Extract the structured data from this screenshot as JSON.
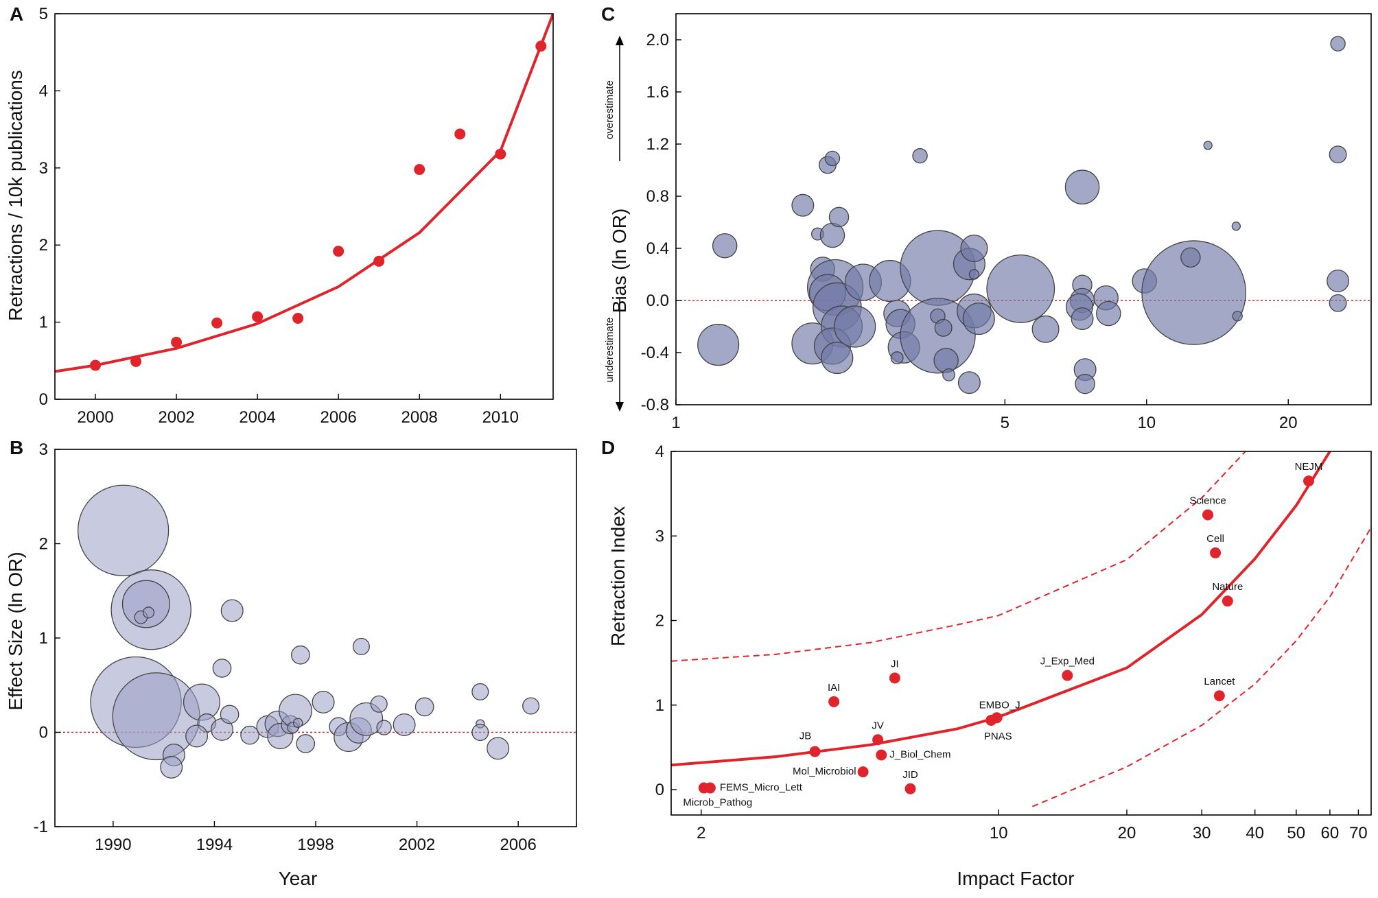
{
  "colors": {
    "red": "#e0242b",
    "bubble": "#7179a8",
    "bubbleB": "#9a9ec4",
    "axis": "#000000"
  },
  "chart_data": [
    {
      "panel": "A",
      "type": "scatter",
      "xlabel": "",
      "ylabel": "Retractions / 10k publications",
      "xlim": [
        1999,
        2011.3
      ],
      "ylim": [
        0,
        5
      ],
      "xticks": [
        2000,
        2002,
        2004,
        2006,
        2008,
        2010
      ],
      "yticks": [
        0,
        1,
        2,
        3,
        4,
        5
      ],
      "points": [
        {
          "x": 2000,
          "y": 0.44
        },
        {
          "x": 2001,
          "y": 0.49
        },
        {
          "x": 2002,
          "y": 0.74
        },
        {
          "x": 2003,
          "y": 0.99
        },
        {
          "x": 2004,
          "y": 1.07
        },
        {
          "x": 2005,
          "y": 1.05
        },
        {
          "x": 2006,
          "y": 1.92
        },
        {
          "x": 2007,
          "y": 1.79
        },
        {
          "x": 2008,
          "y": 2.98
        },
        {
          "x": 2009,
          "y": 3.44
        },
        {
          "x": 2010,
          "y": 3.18
        },
        {
          "x": 2011,
          "y": 4.58
        }
      ],
      "fit": {
        "type": "exponential",
        "curve": [
          [
            1999,
            0.36
          ],
          [
            2000,
            0.44
          ],
          [
            2002,
            0.66
          ],
          [
            2004,
            0.98
          ],
          [
            2006,
            1.46
          ],
          [
            2008,
            2.16
          ],
          [
            2010,
            3.22
          ],
          [
            2011.3,
            5.0
          ]
        ]
      }
    },
    {
      "panel": "B",
      "type": "bubble",
      "xlabel": "Year",
      "ylabel": "Effect Size (ln OR)",
      "xlim": [
        1987.7,
        2008.3
      ],
      "ylim": [
        -1,
        3
      ],
      "xticks": [
        1990,
        1994,
        1998,
        2002,
        2006
      ],
      "yticks": [
        -1,
        0,
        1,
        2,
        3
      ],
      "reference_line": 0,
      "points": [
        {
          "x": 1990.4,
          "y": 2.14,
          "size": 1.0
        },
        {
          "x": 1991.5,
          "y": 1.3,
          "size": 0.88
        },
        {
          "x": 1991.3,
          "y": 1.36,
          "size": 0.52
        },
        {
          "x": 1991.1,
          "y": 1.22,
          "size": 0.14
        },
        {
          "x": 1991.4,
          "y": 1.27,
          "size": 0.12
        },
        {
          "x": 1990.9,
          "y": 0.32,
          "size": 1.0
        },
        {
          "x": 1991.7,
          "y": 0.17,
          "size": 0.96
        },
        {
          "x": 1992.4,
          "y": -0.24,
          "size": 0.24
        },
        {
          "x": 1992.3,
          "y": -0.37,
          "size": 0.24
        },
        {
          "x": 1993.5,
          "y": 0.32,
          "size": 0.4
        },
        {
          "x": 1993.7,
          "y": 0.1,
          "size": 0.2
        },
        {
          "x": 1993.3,
          "y": -0.04,
          "size": 0.24
        },
        {
          "x": 1994.3,
          "y": 0.03,
          "size": 0.24
        },
        {
          "x": 1994.6,
          "y": 0.19,
          "size": 0.2
        },
        {
          "x": 1994.3,
          "y": 0.68,
          "size": 0.2
        },
        {
          "x": 1994.7,
          "y": 1.29,
          "size": 0.24
        },
        {
          "x": 1995.4,
          "y": -0.03,
          "size": 0.2
        },
        {
          "x": 1996.1,
          "y": 0.06,
          "size": 0.24
        },
        {
          "x": 1996.5,
          "y": 0.09,
          "size": 0.28
        },
        {
          "x": 1996.6,
          "y": -0.04,
          "size": 0.28
        },
        {
          "x": 1997.0,
          "y": 0.08,
          "size": 0.2
        },
        {
          "x": 1997.2,
          "y": 0.23,
          "size": 0.36
        },
        {
          "x": 1997.1,
          "y": 0.05,
          "size": 0.12
        },
        {
          "x": 1997.3,
          "y": 0.1,
          "size": 0.1
        },
        {
          "x": 1997.4,
          "y": 0.82,
          "size": 0.2
        },
        {
          "x": 1997.6,
          "y": -0.12,
          "size": 0.2
        },
        {
          "x": 1998.3,
          "y": 0.32,
          "size": 0.24
        },
        {
          "x": 1998.9,
          "y": 0.06,
          "size": 0.2
        },
        {
          "x": 1999.3,
          "y": -0.05,
          "size": 0.32
        },
        {
          "x": 1999.7,
          "y": 0.02,
          "size": 0.28
        },
        {
          "x": 2000.0,
          "y": 0.14,
          "size": 0.36
        },
        {
          "x": 1999.8,
          "y": 0.91,
          "size": 0.18
        },
        {
          "x": 2000.5,
          "y": 0.3,
          "size": 0.18
        },
        {
          "x": 2000.7,
          "y": 0.05,
          "size": 0.16
        },
        {
          "x": 2001.5,
          "y": 0.08,
          "size": 0.24
        },
        {
          "x": 2002.3,
          "y": 0.27,
          "size": 0.2
        },
        {
          "x": 2004.5,
          "y": 0.43,
          "size": 0.18
        },
        {
          "x": 2004.5,
          "y": 0.09,
          "size": 0.06
        },
        {
          "x": 2004.5,
          "y": 0.0,
          "size": 0.18
        },
        {
          "x": 2005.2,
          "y": -0.17,
          "size": 0.24
        },
        {
          "x": 2006.5,
          "y": 0.28,
          "size": 0.18
        }
      ]
    },
    {
      "panel": "C",
      "type": "bubble",
      "xlabel": "",
      "ylabel": "Bias (ln OR)",
      "overestimate_label": "overestimate",
      "underestimate_label": "underestimate",
      "xscale": "log",
      "xlim": [
        1,
        30
      ],
      "ylim": [
        -0.8,
        2.2
      ],
      "xticks": [
        1,
        5,
        10,
        20
      ],
      "yticks": [
        -0.8,
        -0.4,
        0.0,
        0.4,
        0.8,
        1.2,
        1.6,
        2.0
      ],
      "reference_line": 0,
      "points": [
        {
          "x": 1.27,
          "y": 0.42,
          "size": 0.2
        },
        {
          "x": 1.23,
          "y": -0.34,
          "size": 0.34
        },
        {
          "x": 1.86,
          "y": 0.73,
          "size": 0.18
        },
        {
          "x": 2.0,
          "y": 0.51,
          "size": 0.1
        },
        {
          "x": 2.1,
          "y": 1.04,
          "size": 0.14
        },
        {
          "x": 2.15,
          "y": 1.09,
          "size": 0.12
        },
        {
          "x": 2.15,
          "y": 0.5,
          "size": 0.2
        },
        {
          "x": 2.22,
          "y": 0.64,
          "size": 0.16
        },
        {
          "x": 1.95,
          "y": -0.33,
          "size": 0.34
        },
        {
          "x": 2.05,
          "y": 0.24,
          "size": 0.2
        },
        {
          "x": 2.18,
          "y": 0.1,
          "size": 0.46
        },
        {
          "x": 2.1,
          "y": 0.06,
          "size": 0.3
        },
        {
          "x": 2.2,
          "y": -0.05,
          "size": 0.4
        },
        {
          "x": 2.25,
          "y": -0.2,
          "size": 0.34
        },
        {
          "x": 2.15,
          "y": -0.35,
          "size": 0.3
        },
        {
          "x": 2.2,
          "y": -0.44,
          "size": 0.26
        },
        {
          "x": 2.4,
          "y": -0.2,
          "size": 0.34
        },
        {
          "x": 2.5,
          "y": 0.14,
          "size": 0.3
        },
        {
          "x": 2.85,
          "y": 0.15,
          "size": 0.34
        },
        {
          "x": 2.95,
          "y": -0.1,
          "size": 0.22
        },
        {
          "x": 3.0,
          "y": -0.18,
          "size": 0.24
        },
        {
          "x": 3.05,
          "y": -0.36,
          "size": 0.26
        },
        {
          "x": 2.95,
          "y": -0.44,
          "size": 0.1
        },
        {
          "x": 3.3,
          "y": 1.11,
          "size": 0.12
        },
        {
          "x": 3.6,
          "y": 0.25,
          "size": 0.62
        },
        {
          "x": 3.6,
          "y": -0.27,
          "size": 0.62
        },
        {
          "x": 3.6,
          "y": -0.12,
          "size": 0.12
        },
        {
          "x": 3.7,
          "y": -0.21,
          "size": 0.14
        },
        {
          "x": 3.75,
          "y": -0.46,
          "size": 0.2
        },
        {
          "x": 3.8,
          "y": -0.57,
          "size": 0.1
        },
        {
          "x": 4.2,
          "y": 0.28,
          "size": 0.26
        },
        {
          "x": 4.3,
          "y": 0.4,
          "size": 0.22
        },
        {
          "x": 4.3,
          "y": 0.2,
          "size": 0.08
        },
        {
          "x": 4.3,
          "y": -0.08,
          "size": 0.28
        },
        {
          "x": 4.4,
          "y": -0.14,
          "size": 0.26
        },
        {
          "x": 4.2,
          "y": -0.63,
          "size": 0.18
        },
        {
          "x": 5.4,
          "y": 0.09,
          "size": 0.56
        },
        {
          "x": 6.1,
          "y": -0.22,
          "size": 0.22
        },
        {
          "x": 7.3,
          "y": 0.87,
          "size": 0.28
        },
        {
          "x": 7.3,
          "y": 0.12,
          "size": 0.16
        },
        {
          "x": 7.3,
          "y": 0.0,
          "size": 0.2
        },
        {
          "x": 7.2,
          "y": -0.05,
          "size": 0.22
        },
        {
          "x": 7.3,
          "y": -0.14,
          "size": 0.18
        },
        {
          "x": 7.4,
          "y": -0.53,
          "size": 0.18
        },
        {
          "x": 7.4,
          "y": -0.64,
          "size": 0.16
        },
        {
          "x": 8.2,
          "y": 0.02,
          "size": 0.2
        },
        {
          "x": 8.3,
          "y": -0.1,
          "size": 0.2
        },
        {
          "x": 9.9,
          "y": 0.15,
          "size": 0.2
        },
        {
          "x": 12.6,
          "y": 0.06,
          "size": 0.86
        },
        {
          "x": 12.4,
          "y": 0.33,
          "size": 0.16
        },
        {
          "x": 13.5,
          "y": 1.19,
          "size": 0.06
        },
        {
          "x": 15.5,
          "y": 0.57,
          "size": 0.06
        },
        {
          "x": 15.6,
          "y": -0.12,
          "size": 0.08
        },
        {
          "x": 25.5,
          "y": 1.97,
          "size": 0.12
        },
        {
          "x": 25.5,
          "y": 1.12,
          "size": 0.14
        },
        {
          "x": 25.5,
          "y": 0.15,
          "size": 0.18
        },
        {
          "x": 25.5,
          "y": -0.02,
          "size": 0.14
        }
      ]
    },
    {
      "panel": "D",
      "type": "scatter",
      "xlabel": "Impact Factor",
      "ylabel": "Retraction Index",
      "xscale": "log",
      "xlim": [
        1.7,
        75
      ],
      "ylim": [
        -0.3,
        4
      ],
      "xticks": [
        2,
        10,
        20,
        30,
        40,
        50,
        60,
        70
      ],
      "yticks": [
        0,
        1,
        2,
        3,
        4
      ],
      "points": [
        {
          "label": "Microb_Pathog",
          "x": 2.03,
          "y": 0.02
        },
        {
          "label": "FEMS_Micro_Lett",
          "x": 2.1,
          "y": 0.02
        },
        {
          "label": "JB",
          "x": 3.7,
          "y": 0.45
        },
        {
          "label": "IAI",
          "x": 4.1,
          "y": 1.04
        },
        {
          "label": "Mol_Microbiol",
          "x": 4.8,
          "y": 0.21
        },
        {
          "label": "JV",
          "x": 5.2,
          "y": 0.59
        },
        {
          "label": "J_Biol_Chem",
          "x": 5.3,
          "y": 0.41
        },
        {
          "label": "JI",
          "x": 5.7,
          "y": 1.32
        },
        {
          "label": "JID",
          "x": 6.2,
          "y": 0.01
        },
        {
          "label": "PNAS",
          "x": 9.6,
          "y": 0.82
        },
        {
          "label": "EMBO_J",
          "x": 9.9,
          "y": 0.85
        },
        {
          "label": "J_Exp_Med",
          "x": 14.5,
          "y": 1.35
        },
        {
          "label": "Science",
          "x": 31.0,
          "y": 3.25
        },
        {
          "label": "Cell",
          "x": 32.3,
          "y": 2.8
        },
        {
          "label": "Nature",
          "x": 34.5,
          "y": 2.23
        },
        {
          "label": "Lancet",
          "x": 33.0,
          "y": 1.11
        },
        {
          "label": "NEJM",
          "x": 53.5,
          "y": 3.65
        }
      ],
      "fit": {
        "type": "exponential",
        "curve": [
          [
            1.7,
            0.29
          ],
          [
            3,
            0.39
          ],
          [
            5,
            0.53
          ],
          [
            8,
            0.72
          ],
          [
            10,
            0.86
          ],
          [
            20,
            1.44
          ],
          [
            30,
            2.07
          ],
          [
            40,
            2.73
          ],
          [
            50,
            3.36
          ],
          [
            60,
            4.0
          ]
        ]
      },
      "upper_band": [
        [
          1.7,
          1.52
        ],
        [
          3,
          1.6
        ],
        [
          5,
          1.74
        ],
        [
          8,
          1.95
        ],
        [
          10,
          2.06
        ],
        [
          20,
          2.72
        ],
        [
          30,
          3.45
        ],
        [
          38,
          4.0
        ]
      ],
      "lower_band": [
        [
          12,
          -0.2
        ],
        [
          20,
          0.27
        ],
        [
          30,
          0.76
        ],
        [
          40,
          1.25
        ],
        [
          50,
          1.76
        ],
        [
          60,
          2.28
        ],
        [
          75,
          3.1
        ]
      ]
    }
  ],
  "labels": {
    "panel_a": "A",
    "panel_b": "B",
    "panel_c": "C",
    "panel_d": "D",
    "a_ylabel": "Retractions / 10k publications",
    "b_ylabel": "Effect Size (ln OR)",
    "b_xlabel": "Year",
    "c_ylabel": "Bias (ln OR)",
    "c_over": "overestimate",
    "c_under": "underestimate",
    "d_ylabel": "Retraction Index",
    "d_xlabel": "Impact Factor"
  }
}
